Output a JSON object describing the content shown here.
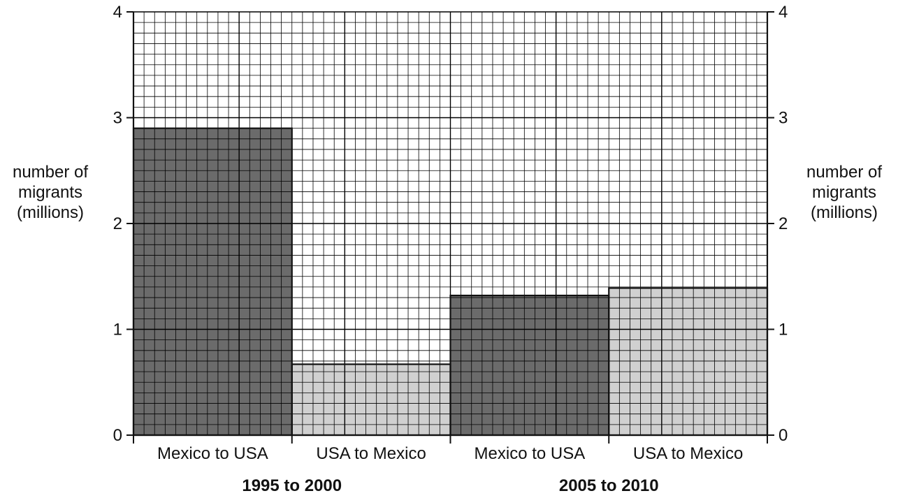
{
  "chart_data": {
    "type": "bar",
    "xlabel": "",
    "ylabel": "number of migrants (millions)",
    "ylabel_lines": [
      "number of",
      "migrants",
      "(millions)"
    ],
    "ylim": [
      0,
      4
    ],
    "yticks": [
      0,
      1,
      2,
      3,
      4
    ],
    "grid": true,
    "groups": [
      {
        "label": "1995 to 2000",
        "bars": [
          {
            "category": "Mexico to USA",
            "value": 2.9
          },
          {
            "category": "USA to Mexico",
            "value": 0.67
          }
        ]
      },
      {
        "label": "2005 to 2010",
        "bars": [
          {
            "category": "Mexico to USA",
            "value": 1.32
          },
          {
            "category": "USA to Mexico",
            "value": 1.39
          }
        ]
      }
    ],
    "colors": {
      "Mexico to USA": "#6b6b6b",
      "USA to Mexico": "#d0d0d0",
      "grid": "#000000"
    }
  }
}
